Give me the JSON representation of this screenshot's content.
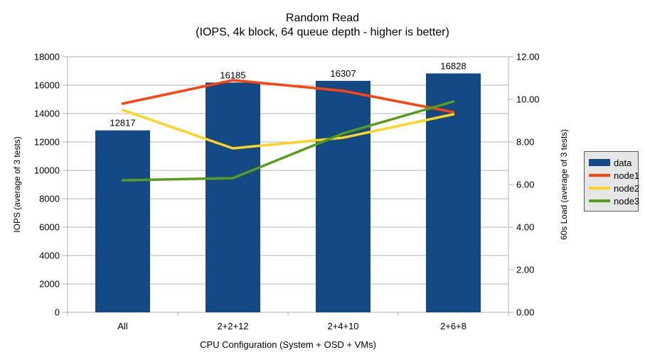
{
  "title": "Random Read",
  "subtitle": "(IOPS, 4k block, 64 queue depth - higher is better)",
  "colors": {
    "bar": "#134A86",
    "node1": "#FF420E",
    "node2": "#FFD320",
    "node3": "#579D1C",
    "grid": "#B3B3B3",
    "axis": "#B3B3B3",
    "text": "#000000",
    "legend_bg": "#E6E6E6",
    "legend_border": "#595959"
  },
  "chart_data": {
    "type": "bar+line",
    "title": "Random Read",
    "subtitle": "(IOPS, 4k block, 64 queue depth - higher is better)",
    "categories": [
      "All",
      "2+2+12",
      "2+4+10",
      "2+6+8"
    ],
    "bar_series": {
      "name": "data",
      "axis": "left",
      "values": [
        12817,
        16185,
        16307,
        16828
      ],
      "data_labels": [
        "12817",
        "16185",
        "16307",
        "16828"
      ]
    },
    "line_series": [
      {
        "name": "node1",
        "axis": "right",
        "color_key": "node1",
        "values": [
          9.8,
          10.9,
          10.4,
          9.4
        ]
      },
      {
        "name": "node2",
        "axis": "right",
        "color_key": "node2",
        "values": [
          9.5,
          7.7,
          8.2,
          9.3
        ]
      },
      {
        "name": "node3",
        "axis": "right",
        "color_key": "node3",
        "values": [
          6.2,
          6.3,
          8.4,
          9.9
        ]
      }
    ],
    "left_axis": {
      "label": "IOPS (average of 3 tests)",
      "min": 0,
      "max": 18000,
      "step": 2000,
      "tick_labels": [
        "0",
        "2000",
        "4000",
        "6000",
        "8000",
        "10000",
        "12000",
        "14000",
        "16000",
        "18000"
      ]
    },
    "right_axis": {
      "label": "60s Load (average of 3 tests)",
      "min": 0,
      "max": 12,
      "step": 2,
      "tick_labels": [
        "0.00",
        "2.00",
        "4.00",
        "6.00",
        "8.00",
        "10.00",
        "12.00"
      ]
    },
    "x_axis": {
      "label": "CPU Configuration (System + OSD + VMs)"
    },
    "legend": [
      {
        "label": "data",
        "swatch": "rect",
        "color_key": "bar"
      },
      {
        "label": "node1",
        "swatch": "line",
        "color_key": "node1"
      },
      {
        "label": "node2",
        "swatch": "line",
        "color_key": "node2"
      },
      {
        "label": "node3",
        "swatch": "line",
        "color_key": "node3"
      }
    ],
    "grid": "horizontal-only",
    "legend_position": "right"
  }
}
